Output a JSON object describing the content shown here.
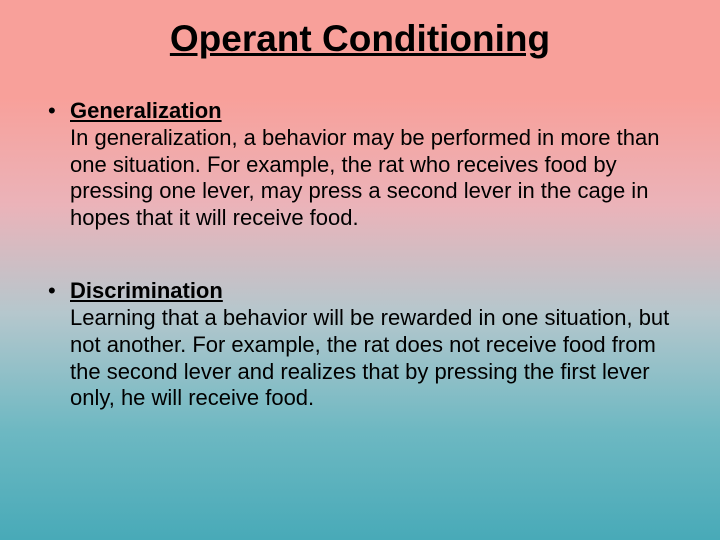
{
  "title": "Operant Conditioning",
  "title_fontsize": 37,
  "body_fontsize": 22,
  "line_height": 1.22,
  "bullets": [
    {
      "term": "Generalization",
      "desc": "In generalization, a behavior may be performed in more than one situation. For example, the rat who receives food by pressing one lever, may press a second lever in the cage in hopes that it will receive food."
    },
    {
      "term": "Discrimination",
      "desc": "Learning that a behavior will be rewarded in one situation, but not another. For example, the rat does not receive food from the second lever and realizes that by pressing the first lever only, he will receive food."
    }
  ],
  "colors": {
    "gradient_top": "#f8a09a",
    "gradient_mid1": "#ebb3b9",
    "gradient_mid2": "#b5c7cd",
    "gradient_mid3": "#6db8c2",
    "gradient_bottom": "#48aab8",
    "text": "#000000"
  }
}
